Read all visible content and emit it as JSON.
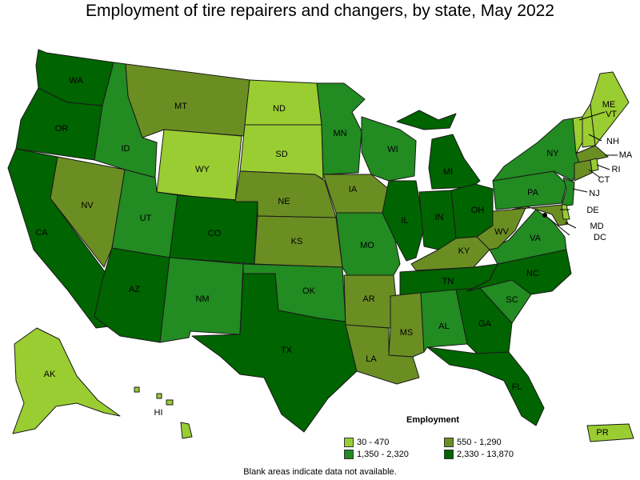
{
  "title": "Employment of tire repairers and changers, by state, May 2022",
  "legend": {
    "title": "Employment",
    "bins": [
      {
        "label": "30 - 470",
        "color": "#9acd32"
      },
      {
        "label": "550 - 1,290",
        "color": "#6b8e23"
      },
      {
        "label": "1,350 - 2,320",
        "color": "#228b22"
      },
      {
        "label": "2,330 - 13,870",
        "color": "#006400"
      }
    ]
  },
  "footnote": "Blank areas indicate data not available.",
  "states": {
    "WA": 3,
    "OR": 3,
    "CA": 3,
    "NV": 1,
    "ID": 2,
    "MT": 1,
    "WY": 0,
    "UT": 2,
    "AZ": 3,
    "CO": 3,
    "NM": 2,
    "ND": 0,
    "SD": 0,
    "NE": 1,
    "KS": 1,
    "OK": 2,
    "TX": 3,
    "MN": 2,
    "IA": 1,
    "MO": 2,
    "AR": 1,
    "LA": 1,
    "WI": 2,
    "IL": 3,
    "MI": 3,
    "IN": 3,
    "OH": 3,
    "KY": 1,
    "TN": 3,
    "MS": 1,
    "AL": 2,
    "GA": 3,
    "FL": 3,
    "SC": 2,
    "NC": 3,
    "VA": 2,
    "WV": 1,
    "PA": 2,
    "NY": 2,
    "ME": 0,
    "NH": 0,
    "VT": 0,
    "MA": 1,
    "CT": 1,
    "RI": 0,
    "NJ": 2,
    "DE": 0,
    "MD": 1,
    "DC": 0,
    "AK": 0,
    "HI": 0,
    "PR": 0
  }
}
